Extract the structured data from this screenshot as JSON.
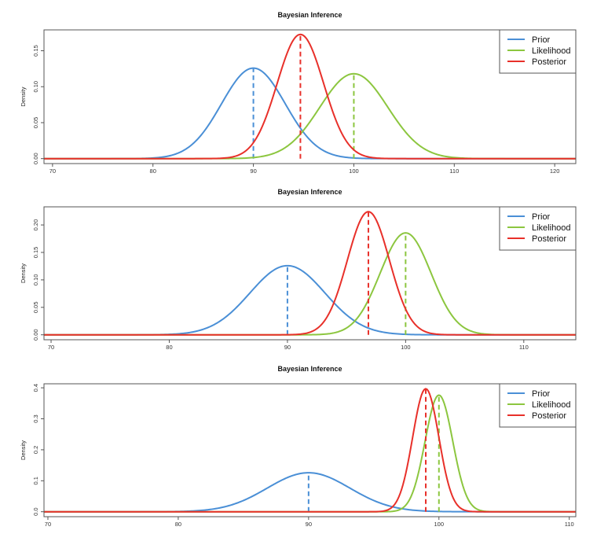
{
  "colors": {
    "prior": "#4a8fd6",
    "likelihood": "#8cc63f",
    "posterior": "#e8302a",
    "axis": "#555555"
  },
  "chart_data": [
    {
      "type": "line",
      "title": "Bayesian Inference",
      "xlabel": "",
      "ylabel": "Density",
      "xlim": [
        69.15,
        122.1
      ],
      "ylim": [
        -0.0069,
        0.179
      ],
      "xticks": [
        70,
        80,
        90,
        100,
        110,
        120
      ],
      "xtick_labels": [
        "70",
        "80",
        "90",
        "100",
        "110",
        "120"
      ],
      "yticks": [
        0.0,
        0.05,
        0.1,
        0.15
      ],
      "ytick_labels": [
        "0.00",
        "0.05",
        "0.10",
        "0.15"
      ],
      "legend": {
        "position": "top-right",
        "entries": [
          "Prior",
          "Likelihood",
          "Posterior"
        ]
      },
      "series": [
        {
          "name": "Prior",
          "distribution": "normal",
          "mean": 90,
          "sd": 3.17
        },
        {
          "name": "Likelihood",
          "distribution": "normal",
          "mean": 100,
          "sd": 3.38
        },
        {
          "name": "Posterior",
          "distribution": "normal",
          "mean": 94.68,
          "sd": 2.31
        }
      ],
      "mean_lines": true
    },
    {
      "type": "line",
      "title": "Bayesian Inference",
      "xlabel": "",
      "ylabel": "Density",
      "xlim": [
        69.4,
        114.4
      ],
      "ylim": [
        -0.009,
        0.233
      ],
      "xticks": [
        70,
        80,
        90,
        100,
        110
      ],
      "xtick_labels": [
        "70",
        "80",
        "90",
        "100",
        "110"
      ],
      "yticks": [
        0.0,
        0.05,
        0.1,
        0.15,
        0.2
      ],
      "ytick_labels": [
        "0.00",
        "0.05",
        "0.10",
        "0.15",
        "0.20"
      ],
      "legend": {
        "position": "top-right",
        "entries": [
          "Prior",
          "Likelihood",
          "Posterior"
        ]
      },
      "series": [
        {
          "name": "Prior",
          "distribution": "normal",
          "mean": 90,
          "sd": 3.17
        },
        {
          "name": "Likelihood",
          "distribution": "normal",
          "mean": 100,
          "sd": 2.15
        },
        {
          "name": "Posterior",
          "distribution": "normal",
          "mean": 96.85,
          "sd": 1.78
        }
      ],
      "mean_lines": true
    },
    {
      "type": "line",
      "title": "Bayesian Inference",
      "xlabel": "",
      "ylabel": "Density",
      "xlim": [
        69.7,
        110.5
      ],
      "ylim": [
        -0.016,
        0.413
      ],
      "xticks": [
        70,
        80,
        90,
        100,
        110
      ],
      "xtick_labels": [
        "70",
        "80",
        "90",
        "100",
        "110"
      ],
      "yticks": [
        0.0,
        0.1,
        0.2,
        0.3,
        0.4
      ],
      "ytick_labels": [
        "0.0",
        "0.1",
        "0.2",
        "0.3",
        "0.4"
      ],
      "legend": {
        "position": "top-right",
        "entries": [
          "Prior",
          "Likelihood",
          "Posterior"
        ]
      },
      "series": [
        {
          "name": "Prior",
          "distribution": "normal",
          "mean": 90,
          "sd": 3.17
        },
        {
          "name": "Likelihood",
          "distribution": "normal",
          "mean": 100,
          "sd": 1.06
        },
        {
          "name": "Posterior",
          "distribution": "normal",
          "mean": 98.99,
          "sd": 1.005
        }
      ],
      "mean_lines": true
    }
  ]
}
